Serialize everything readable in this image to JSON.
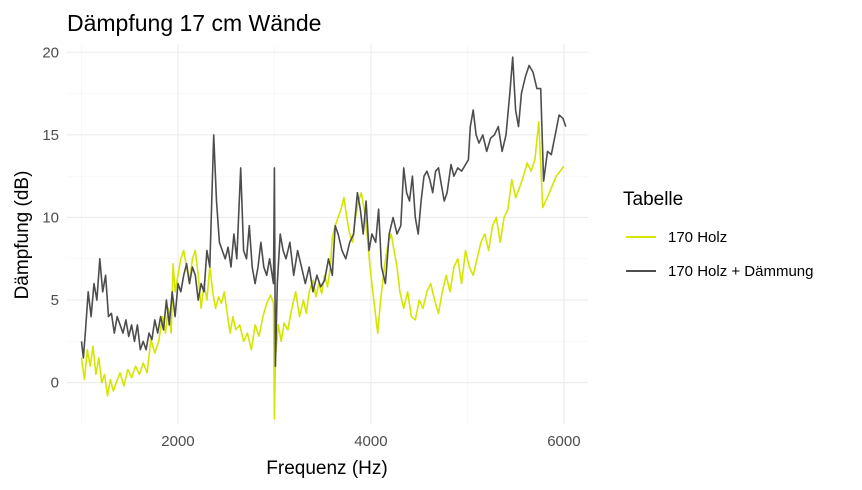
{
  "chart_data": {
    "type": "line",
    "title": "Dämpfung 17 cm Wände",
    "xlabel": "Frequenz (Hz)",
    "ylabel": "Dämpfung (dB)",
    "xlim": [
      850,
      6250
    ],
    "ylim": [
      -2.5,
      20.5
    ],
    "xticks": [
      2000,
      4000,
      6000
    ],
    "xtick_labels": [
      "2000",
      "4000",
      "6000"
    ],
    "yticks": [
      0,
      5,
      10,
      15,
      20
    ],
    "ytick_labels": [
      "0",
      "5",
      "10",
      "15",
      "20"
    ],
    "grid": true,
    "legend": {
      "title": "Tabelle",
      "placement": "right"
    },
    "series": [
      {
        "name": "170 Holz",
        "color": "#d4e600",
        "points": [
          [
            1000,
            1.5
          ],
          [
            1030,
            0.2
          ],
          [
            1060,
            2.0
          ],
          [
            1090,
            1.0
          ],
          [
            1120,
            2.2
          ],
          [
            1150,
            0.5
          ],
          [
            1180,
            1.5
          ],
          [
            1210,
            0.0
          ],
          [
            1240,
            0.5
          ],
          [
            1270,
            -0.8
          ],
          [
            1300,
            0.2
          ],
          [
            1330,
            -0.5
          ],
          [
            1360,
            0.0
          ],
          [
            1400,
            0.6
          ],
          [
            1440,
            -0.2
          ],
          [
            1480,
            0.8
          ],
          [
            1520,
            0.3
          ],
          [
            1560,
            1.0
          ],
          [
            1600,
            0.5
          ],
          [
            1640,
            1.2
          ],
          [
            1680,
            0.6
          ],
          [
            1720,
            2.6
          ],
          [
            1760,
            1.8
          ],
          [
            1800,
            2.5
          ],
          [
            1840,
            4.0
          ],
          [
            1870,
            3.0
          ],
          [
            1900,
            4.5
          ],
          [
            1930,
            3.0
          ],
          [
            1950,
            7.2
          ],
          [
            1970,
            5.5
          ],
          [
            2000,
            6.5
          ],
          [
            2030,
            7.5
          ],
          [
            2060,
            8.0
          ],
          [
            2090,
            7.0
          ],
          [
            2120,
            6.0
          ],
          [
            2150,
            7.5
          ],
          [
            2180,
            8.0
          ],
          [
            2210,
            6.5
          ],
          [
            2240,
            4.5
          ],
          [
            2270,
            6.0
          ],
          [
            2300,
            5.0
          ],
          [
            2330,
            7.0
          ],
          [
            2360,
            5.5
          ],
          [
            2390,
            4.5
          ],
          [
            2420,
            5.2
          ],
          [
            2450,
            4.8
          ],
          [
            2480,
            5.5
          ],
          [
            2510,
            4.2
          ],
          [
            2540,
            3.0
          ],
          [
            2570,
            4.0
          ],
          [
            2600,
            3.2
          ],
          [
            2640,
            3.5
          ],
          [
            2680,
            2.5
          ],
          [
            2720,
            3.0
          ],
          [
            2760,
            2.0
          ],
          [
            2800,
            3.5
          ],
          [
            2840,
            2.8
          ],
          [
            2880,
            4.0
          ],
          [
            2920,
            4.8
          ],
          [
            2960,
            5.3
          ],
          [
            2990,
            4.8
          ],
          [
            3000,
            -2.2
          ],
          [
            3010,
            1.5
          ],
          [
            3040,
            3.5
          ],
          [
            3070,
            2.5
          ],
          [
            3100,
            3.6
          ],
          [
            3140,
            3.2
          ],
          [
            3180,
            4.5
          ],
          [
            3220,
            5.5
          ],
          [
            3260,
            4.0
          ],
          [
            3300,
            5.0
          ],
          [
            3330,
            4.2
          ],
          [
            3360,
            5.5
          ],
          [
            3400,
            6.2
          ],
          [
            3430,
            5.2
          ],
          [
            3460,
            6.0
          ],
          [
            3490,
            5.4
          ],
          [
            3520,
            6.5
          ],
          [
            3550,
            5.8
          ],
          [
            3580,
            7.0
          ],
          [
            3600,
            8.8
          ],
          [
            3630,
            9.5
          ],
          [
            3660,
            10.0
          ],
          [
            3690,
            10.5
          ],
          [
            3720,
            11.2
          ],
          [
            3750,
            10.0
          ],
          [
            3780,
            9.0
          ],
          [
            3810,
            8.5
          ],
          [
            3840,
            10.0
          ],
          [
            3870,
            11.0
          ],
          [
            3900,
            11.5
          ],
          [
            3930,
            10.5
          ],
          [
            3960,
            9.0
          ],
          [
            3990,
            7.0
          ],
          [
            4030,
            5.0
          ],
          [
            4070,
            3.0
          ],
          [
            4100,
            5.0
          ],
          [
            4140,
            7.0
          ],
          [
            4180,
            8.5
          ],
          [
            4210,
            9.0
          ],
          [
            4240,
            8.0
          ],
          [
            4270,
            7.0
          ],
          [
            4300,
            5.5
          ],
          [
            4340,
            4.5
          ],
          [
            4380,
            5.5
          ],
          [
            4420,
            4.0
          ],
          [
            4460,
            3.8
          ],
          [
            4500,
            5.0
          ],
          [
            4540,
            4.5
          ],
          [
            4580,
            5.5
          ],
          [
            4620,
            6.0
          ],
          [
            4660,
            5.0
          ],
          [
            4700,
            4.2
          ],
          [
            4740,
            5.5
          ],
          [
            4780,
            6.5
          ],
          [
            4820,
            5.5
          ],
          [
            4860,
            7.0
          ],
          [
            4900,
            7.5
          ],
          [
            4940,
            6.0
          ],
          [
            4980,
            8.0
          ],
          [
            5020,
            7.0
          ],
          [
            5060,
            6.5
          ],
          [
            5100,
            7.5
          ],
          [
            5140,
            8.5
          ],
          [
            5180,
            9.0
          ],
          [
            5220,
            8.0
          ],
          [
            5260,
            9.5
          ],
          [
            5300,
            10.0
          ],
          [
            5340,
            8.5
          ],
          [
            5380,
            10.0
          ],
          [
            5420,
            10.5
          ],
          [
            5460,
            12.3
          ],
          [
            5500,
            11.2
          ],
          [
            5540,
            11.8
          ],
          [
            5580,
            12.5
          ],
          [
            5620,
            13.3
          ],
          [
            5660,
            12.8
          ],
          [
            5700,
            13.5
          ],
          [
            5740,
            15.8
          ],
          [
            5780,
            10.6
          ],
          [
            5850,
            11.5
          ],
          [
            5920,
            12.5
          ],
          [
            6000,
            13.1
          ]
        ]
      },
      {
        "name": "170 Holz + Dämmung",
        "color": "#4d4d4d",
        "points": [
          [
            1000,
            2.5
          ],
          [
            1020,
            1.5
          ],
          [
            1040,
            3.0
          ],
          [
            1070,
            5.5
          ],
          [
            1100,
            4.0
          ],
          [
            1130,
            6.0
          ],
          [
            1160,
            5.0
          ],
          [
            1190,
            7.5
          ],
          [
            1220,
            5.5
          ],
          [
            1250,
            6.5
          ],
          [
            1280,
            4.0
          ],
          [
            1310,
            4.2
          ],
          [
            1340,
            3.0
          ],
          [
            1370,
            4.0
          ],
          [
            1400,
            3.5
          ],
          [
            1430,
            3.0
          ],
          [
            1460,
            3.8
          ],
          [
            1490,
            2.8
          ],
          [
            1520,
            3.5
          ],
          [
            1550,
            2.5
          ],
          [
            1580,
            3.5
          ],
          [
            1610,
            2.0
          ],
          [
            1640,
            2.5
          ],
          [
            1670,
            2.0
          ],
          [
            1700,
            3.0
          ],
          [
            1730,
            2.6
          ],
          [
            1760,
            3.8
          ],
          [
            1790,
            3.0
          ],
          [
            1820,
            4.0
          ],
          [
            1850,
            3.2
          ],
          [
            1880,
            5.0
          ],
          [
            1910,
            3.5
          ],
          [
            1940,
            5.5
          ],
          [
            1970,
            4.0
          ],
          [
            2000,
            6.0
          ],
          [
            2030,
            5.5
          ],
          [
            2060,
            6.5
          ],
          [
            2090,
            7.2
          ],
          [
            2120,
            6.0
          ],
          [
            2150,
            7.0
          ],
          [
            2180,
            6.5
          ],
          [
            2210,
            5.0
          ],
          [
            2240,
            6.0
          ],
          [
            2270,
            5.5
          ],
          [
            2300,
            8.0
          ],
          [
            2330,
            7.0
          ],
          [
            2370,
            15.0
          ],
          [
            2400,
            11.0
          ],
          [
            2430,
            8.5
          ],
          [
            2460,
            8.0
          ],
          [
            2490,
            7.5
          ],
          [
            2520,
            8.2
          ],
          [
            2550,
            7.0
          ],
          [
            2580,
            9.0
          ],
          [
            2610,
            7.5
          ],
          [
            2650,
            13.0
          ],
          [
            2680,
            8.0
          ],
          [
            2710,
            7.5
          ],
          [
            2740,
            9.5
          ],
          [
            2770,
            7.0
          ],
          [
            2800,
            6.0
          ],
          [
            2830,
            7.0
          ],
          [
            2860,
            8.5
          ],
          [
            2890,
            7.0
          ],
          [
            2920,
            6.5
          ],
          [
            2950,
            7.5
          ],
          [
            2990,
            6.0
          ],
          [
            3000,
            13.0
          ],
          [
            3010,
            1.0
          ],
          [
            3030,
            6.0
          ],
          [
            3060,
            9.0
          ],
          [
            3090,
            8.0
          ],
          [
            3120,
            7.5
          ],
          [
            3160,
            8.5
          ],
          [
            3200,
            6.5
          ],
          [
            3240,
            8.0
          ],
          [
            3280,
            7.0
          ],
          [
            3320,
            6.0
          ],
          [
            3360,
            7.0
          ],
          [
            3400,
            5.5
          ],
          [
            3440,
            6.5
          ],
          [
            3480,
            5.8
          ],
          [
            3520,
            6.2
          ],
          [
            3560,
            7.5
          ],
          [
            3600,
            6.5
          ],
          [
            3630,
            9.5
          ],
          [
            3660,
            9.0
          ],
          [
            3700,
            8.0
          ],
          [
            3740,
            7.5
          ],
          [
            3780,
            8.5
          ],
          [
            3820,
            9.0
          ],
          [
            3860,
            11.5
          ],
          [
            3890,
            10.5
          ],
          [
            3920,
            9.0
          ],
          [
            3950,
            11.0
          ],
          [
            3980,
            8.0
          ],
          [
            4010,
            9.0
          ],
          [
            4050,
            8.5
          ],
          [
            4080,
            10.5
          ],
          [
            4110,
            7.0
          ],
          [
            4150,
            6.0
          ],
          [
            4190,
            9.0
          ],
          [
            4230,
            10.0
          ],
          [
            4270,
            9.0
          ],
          [
            4310,
            9.5
          ],
          [
            4340,
            13.0
          ],
          [
            4370,
            11.5
          ],
          [
            4400,
            11.0
          ],
          [
            4430,
            12.5
          ],
          [
            4460,
            10.0
          ],
          [
            4490,
            9.0
          ],
          [
            4520,
            11.0
          ],
          [
            4550,
            12.5
          ],
          [
            4580,
            12.8
          ],
          [
            4610,
            12.3
          ],
          [
            4640,
            11.5
          ],
          [
            4670,
            12.8
          ],
          [
            4700,
            13.0
          ],
          [
            4730,
            12.0
          ],
          [
            4760,
            11.0
          ],
          [
            4790,
            11.5
          ],
          [
            4830,
            13.2
          ],
          [
            4860,
            12.5
          ],
          [
            4900,
            13.0
          ],
          [
            4940,
            12.8
          ],
          [
            4980,
            13.2
          ],
          [
            5010,
            13.5
          ],
          [
            5030,
            15.5
          ],
          [
            5060,
            16.5
          ],
          [
            5090,
            15.0
          ],
          [
            5120,
            14.5
          ],
          [
            5160,
            15.0
          ],
          [
            5200,
            14.0
          ],
          [
            5240,
            14.8
          ],
          [
            5280,
            15.0
          ],
          [
            5320,
            15.5
          ],
          [
            5360,
            14.0
          ],
          [
            5400,
            15.0
          ],
          [
            5440,
            17.5
          ],
          [
            5470,
            19.7
          ],
          [
            5500,
            16.5
          ],
          [
            5530,
            15.5
          ],
          [
            5560,
            17.5
          ],
          [
            5600,
            18.5
          ],
          [
            5640,
            19.2
          ],
          [
            5680,
            18.8
          ],
          [
            5720,
            17.8
          ],
          [
            5760,
            17.8
          ],
          [
            5790,
            12.2
          ],
          [
            5830,
            14.0
          ],
          [
            5870,
            13.8
          ],
          [
            5910,
            15.0
          ],
          [
            5950,
            16.2
          ],
          [
            5990,
            16.0
          ],
          [
            6020,
            15.5
          ]
        ]
      }
    ]
  }
}
